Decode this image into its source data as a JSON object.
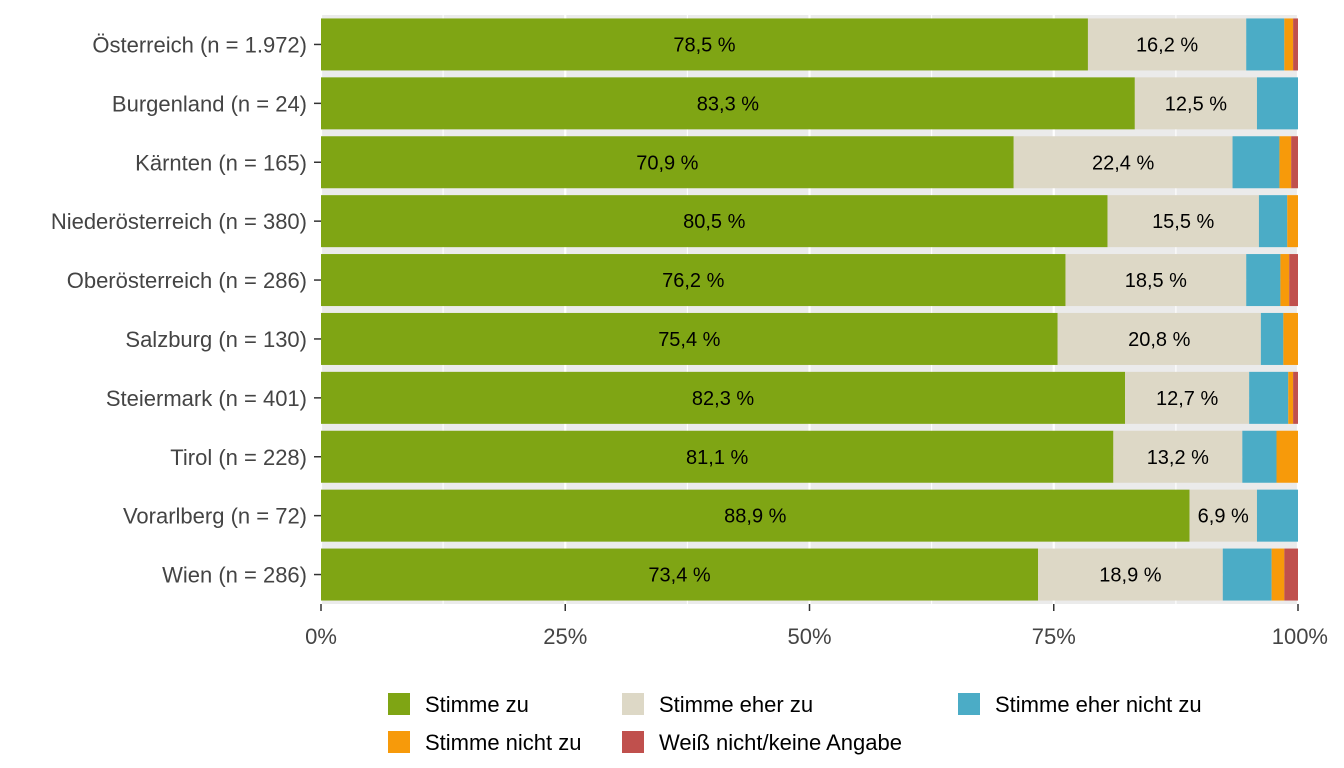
{
  "chart_data": {
    "type": "bar",
    "orientation": "horizontal",
    "stacked": true,
    "categories": [
      "Österreich (n = 1.972)",
      "Burgenland (n = 24)",
      "Kärnten (n = 165)",
      "Niederösterreich (n = 380)",
      "Oberösterreich (n = 286)",
      "Salzburg (n = 130)",
      "Steiermark (n = 401)",
      "Tirol (n = 228)",
      "Vorarlberg (n = 72)",
      "Wien (n = 286)"
    ],
    "series": [
      {
        "name": "Stimme zu",
        "color": "#7fa514",
        "values": [
          78.5,
          83.3,
          70.9,
          80.5,
          76.2,
          75.4,
          82.3,
          81.1,
          88.9,
          73.4
        ],
        "labels": [
          "78,5 %",
          "83,3 %",
          "70,9 %",
          "80,5 %",
          "76,2 %",
          "75,4 %",
          "82,3 %",
          "81,1 %",
          "88,9 %",
          "73,4 %"
        ]
      },
      {
        "name": "Stimme eher zu",
        "color": "#ddd8c6",
        "values": [
          16.2,
          12.5,
          22.4,
          15.5,
          18.5,
          20.8,
          12.7,
          13.2,
          6.9,
          18.9
        ],
        "labels": [
          "16,2 %",
          "12,5 %",
          "22,4 %",
          "15,5 %",
          "18,5 %",
          "20,8 %",
          "12,7 %",
          "13,2 %",
          "6,9 %",
          "18,9 %"
        ]
      },
      {
        "name": "Stimme eher nicht zu",
        "color": "#4bacc6",
        "values": [
          3.9,
          4.2,
          4.8,
          2.9,
          3.5,
          2.3,
          4.0,
          3.5,
          4.2,
          5.0
        ],
        "labels": []
      },
      {
        "name": "Stimme nicht zu",
        "color": "#f79a0a",
        "values": [
          0.9,
          0.0,
          1.2,
          1.1,
          0.9,
          1.5,
          0.5,
          2.2,
          0.0,
          1.3
        ],
        "labels": []
      },
      {
        "name": "Weiß nicht/keine Angabe",
        "color": "#c0504d",
        "values": [
          0.5,
          0.0,
          0.7,
          0.0,
          0.9,
          0.0,
          0.5,
          0.0,
          0.0,
          1.4
        ],
        "labels": []
      }
    ],
    "x_ticks": [
      "0%",
      "25%",
      "50%",
      "75%",
      "100%"
    ],
    "xlim": [
      0,
      100
    ],
    "xlabel": "",
    "ylabel": "",
    "title": "",
    "grid": true,
    "panel_background": "#ebebeb",
    "legend_position": "bottom"
  }
}
